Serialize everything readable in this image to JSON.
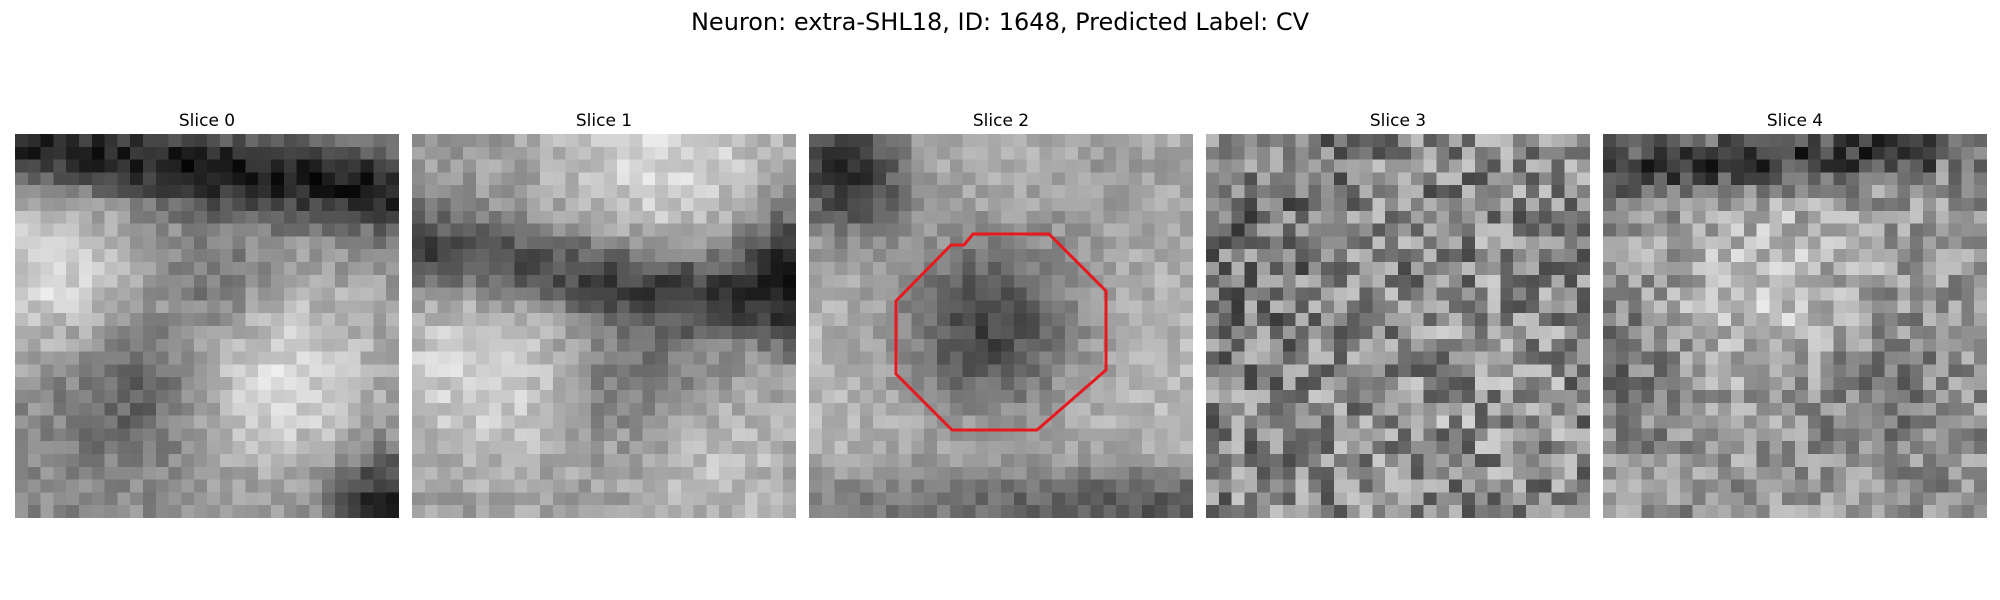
{
  "figure": {
    "title": "Neuron: extra-SHL18, ID: 1648, Predicted Label: CV"
  },
  "panels": [
    {
      "title": "Slice 0"
    },
    {
      "title": "Slice 1"
    },
    {
      "title": "Slice 2"
    },
    {
      "title": "Slice 3"
    },
    {
      "title": "Slice 4"
    }
  ],
  "overlay": {
    "color": "#e8191e",
    "panel": "Slice 2",
    "shape": "octagon contour"
  },
  "colormap": "grayscale"
}
